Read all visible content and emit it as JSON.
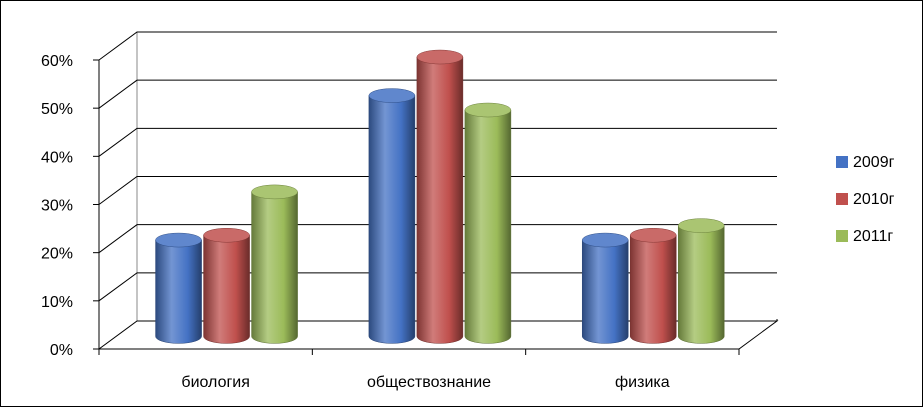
{
  "chart_data": {
    "type": "bar",
    "categories": [
      "биология",
      "обществознание",
      "физика"
    ],
    "series": [
      {
        "name": "2009г",
        "values": [
          20,
          50,
          20
        ],
        "color": "#4472c4"
      },
      {
        "name": "2010г",
        "values": [
          21,
          58,
          21
        ],
        "color": "#c0504d"
      },
      {
        "name": "2011г",
        "values": [
          30,
          47,
          23
        ],
        "color": "#9bbb59"
      }
    ],
    "y_ticks": [
      "0%",
      "10%",
      "20%",
      "30%",
      "40%",
      "50%",
      "60%"
    ],
    "ylim": [
      0,
      60
    ],
    "grid": true,
    "legend_position": "right",
    "style": "3d-cylinder"
  }
}
